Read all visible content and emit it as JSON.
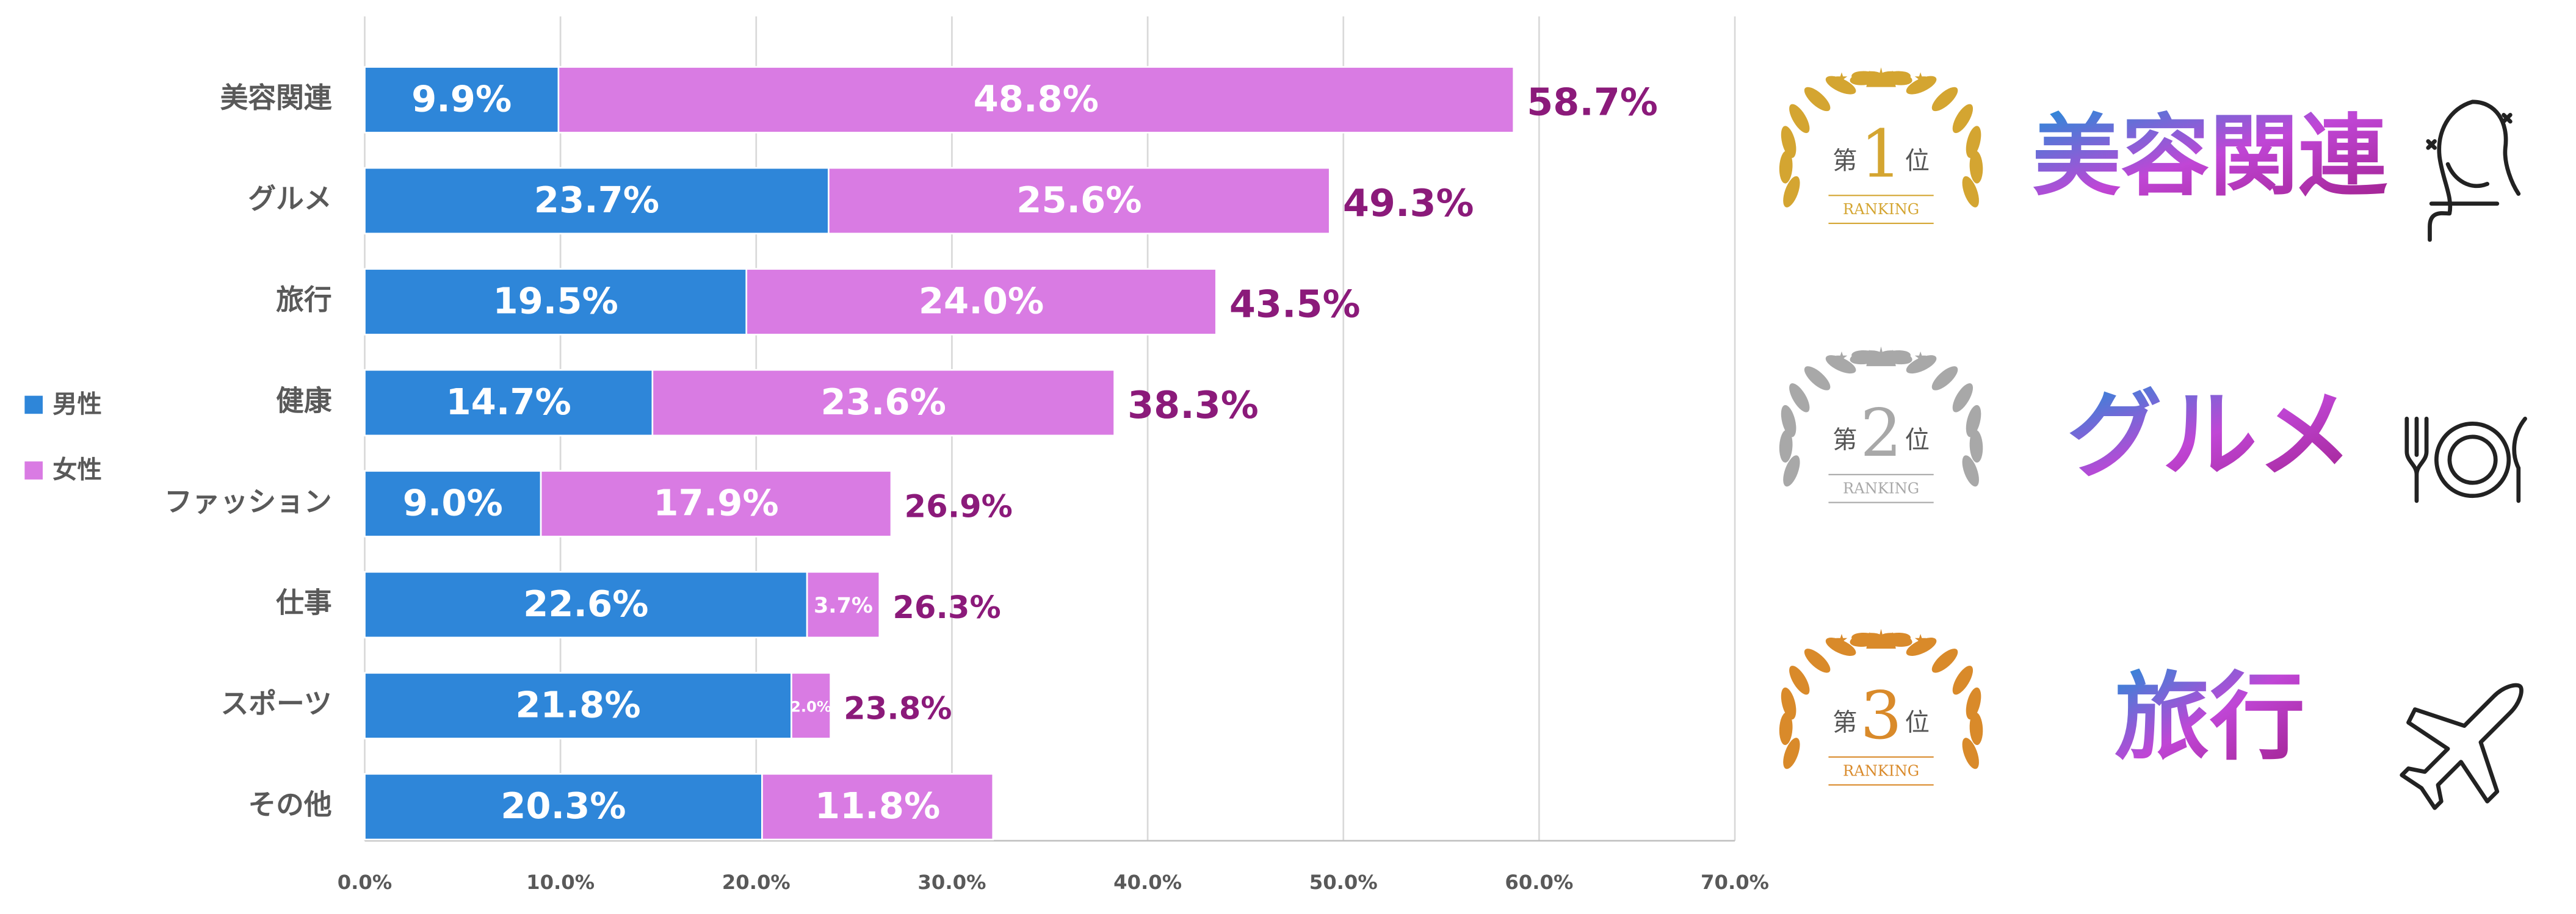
{
  "chart_data": {
    "type": "stacked-bar-horizontal",
    "categories": [
      "美容関連",
      "グルメ",
      "旅行",
      "健康",
      "ファッション",
      "仕事",
      "スポーツ",
      "その他"
    ],
    "series": [
      {
        "name": "男性",
        "color": "#2e86d9",
        "values": [
          9.9,
          23.7,
          19.5,
          14.7,
          9.0,
          22.6,
          21.8,
          20.3
        ],
        "value_labels": [
          "9.9%",
          "23.7%",
          "19.5%",
          "14.7%",
          "9.0%",
          "22.6%",
          "21.8%",
          "20.3%"
        ]
      },
      {
        "name": "女性",
        "color": "#d97be3",
        "values": [
          48.8,
          25.6,
          24.0,
          23.6,
          17.9,
          3.7,
          2.0,
          11.8
        ],
        "value_labels": [
          "48.8%",
          "25.6%",
          "24.0%",
          "23.6%",
          "17.9%",
          "3.7%",
          "2.0%",
          "11.8%"
        ]
      }
    ],
    "totals": {
      "color": "#8b1a7a",
      "values": [
        58.7,
        49.3,
        43.5,
        38.3,
        26.9,
        26.3,
        23.8,
        null
      ],
      "value_labels": [
        "58.7%",
        "49.3%",
        "43.5%",
        "38.3%",
        "26.9%",
        "26.3%",
        "23.8%",
        null
      ]
    },
    "xlim": [
      0,
      70
    ],
    "xticks": [
      {
        "value": 0,
        "label": "0.0%"
      },
      {
        "value": 10,
        "label": "10.0%"
      },
      {
        "value": 20,
        "label": "20.0%"
      },
      {
        "value": 30,
        "label": "30.0%"
      },
      {
        "value": 40,
        "label": "40.0%"
      },
      {
        "value": 50,
        "label": "50.0%"
      },
      {
        "value": 60,
        "label": "60.0%"
      },
      {
        "value": 70,
        "label": "70.0%"
      }
    ],
    "grid": true,
    "legend": "left"
  },
  "ranking": [
    {
      "prefix": "第",
      "rank": 1,
      "suffix": "位",
      "badge": "RANKING",
      "label": "美容関連",
      "color": "#d4a531"
    },
    {
      "prefix": "第",
      "rank": 2,
      "suffix": "位",
      "badge": "RANKING",
      "label": "グルメ",
      "color": "#a8a8a8"
    },
    {
      "prefix": "第",
      "rank": 3,
      "suffix": "位",
      "badge": "RANKING",
      "label": "旅行",
      "color": "#d98a2a"
    }
  ]
}
